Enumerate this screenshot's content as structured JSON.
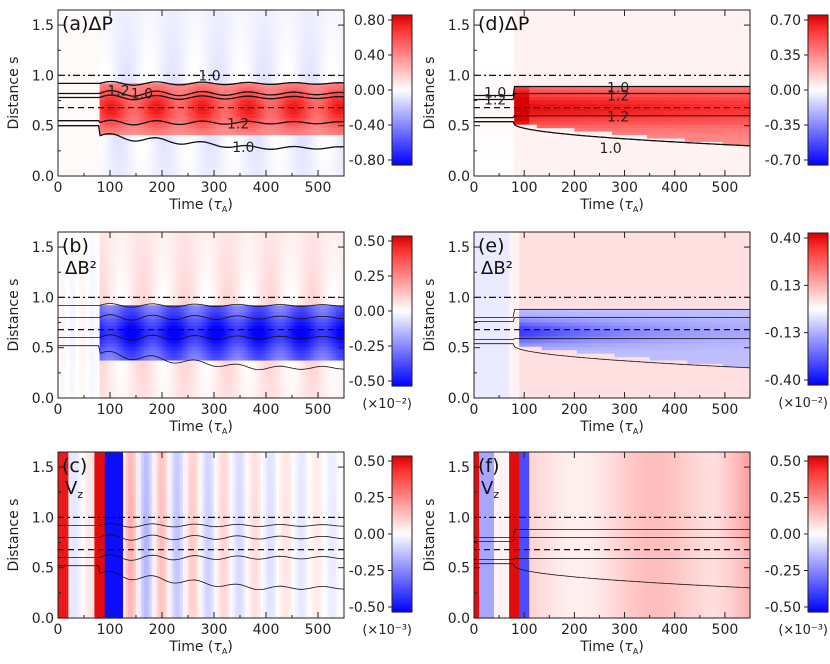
{
  "figure": {
    "xlabel": "Time",
    "xunit": "τ",
    "xunit_sub": "A",
    "ylabel": "Distance s"
  },
  "chart_data": [
    {
      "id": "a",
      "type": "heatmap",
      "panel_label": "(a)",
      "quantity": "ΔP",
      "xlim": [
        0,
        550
      ],
      "ylim": [
        0,
        1.65
      ],
      "xticks": [
        0,
        100,
        200,
        300,
        400,
        500
      ],
      "yticks": [
        0.0,
        0.5,
        1.0,
        1.5
      ],
      "colorbar": {
        "ticks": [
          "0.80",
          "0.40",
          "0.00",
          "-0.40",
          "-0.80"
        ],
        "range": [
          -0.8,
          0.8
        ]
      },
      "contour_labels": [
        "1.0",
        "1.2",
        "1.0",
        "1.2",
        "1.0"
      ],
      "reference_lines": {
        "dashdot": 1.0,
        "dashed": 0.68
      }
    },
    {
      "id": "d",
      "type": "heatmap",
      "panel_label": "(d)",
      "quantity": "ΔP",
      "xlim": [
        0,
        550
      ],
      "ylim": [
        0,
        1.65
      ],
      "xticks": [
        0,
        100,
        200,
        300,
        400,
        500
      ],
      "yticks": [
        0.0,
        0.5,
        1.0,
        1.5
      ],
      "colorbar": {
        "ticks": [
          "0.70",
          "0.35",
          "0.00",
          "-0.35",
          "-0.70"
        ],
        "range": [
          -0.7,
          0.7
        ]
      },
      "contour_labels": [
        "1.0",
        "1.2",
        "1.0",
        "1.2",
        "1.2",
        "1.0"
      ],
      "reference_lines": {
        "dashdot": 1.0,
        "dashed": 0.68
      }
    },
    {
      "id": "b",
      "type": "heatmap",
      "panel_label": "(b)",
      "quantity": "ΔB²",
      "xlim": [
        0,
        550
      ],
      "ylim": [
        0,
        1.65
      ],
      "xticks": [
        0,
        100,
        200,
        300,
        400,
        500
      ],
      "yticks": [
        0.0,
        0.5,
        1.0,
        1.5
      ],
      "colorbar": {
        "ticks": [
          "0.50",
          "0.25",
          "0.00",
          "-0.25",
          "-0.50"
        ],
        "range": [
          -0.5,
          0.5
        ],
        "scale": "(×10⁻²)"
      },
      "reference_lines": {
        "dashdot": 1.0,
        "dashed": 0.68
      }
    },
    {
      "id": "e",
      "type": "heatmap",
      "panel_label": "(e)",
      "quantity": "ΔB²",
      "xlim": [
        0,
        550
      ],
      "ylim": [
        0,
        1.65
      ],
      "xticks": [
        0,
        100,
        200,
        300,
        400,
        500
      ],
      "yticks": [
        0.0,
        0.5,
        1.0,
        1.5
      ],
      "colorbar": {
        "ticks": [
          "0.40",
          "0.13",
          "-0.13",
          "-0.40"
        ],
        "range": [
          -0.4,
          0.4
        ],
        "scale": "(×10⁻²)"
      },
      "reference_lines": {
        "dashdot": 1.0,
        "dashed": 0.68
      }
    },
    {
      "id": "c",
      "type": "heatmap",
      "panel_label": "(c)",
      "quantity": "V",
      "quantity_sub": "z",
      "xlim": [
        0,
        550
      ],
      "ylim": [
        0,
        1.65
      ],
      "xticks": [
        0,
        100,
        200,
        300,
        400,
        500
      ],
      "yticks": [
        0.0,
        0.5,
        1.0,
        1.5
      ],
      "colorbar": {
        "ticks": [
          "0.50",
          "0.25",
          "0.00",
          "-0.25",
          "-0.50"
        ],
        "range": [
          -0.5,
          0.5
        ],
        "scale": "(×10⁻³)"
      },
      "reference_lines": {
        "dashdot": 1.0,
        "dashed": 0.68
      }
    },
    {
      "id": "f",
      "type": "heatmap",
      "panel_label": "(f)",
      "quantity": "V",
      "quantity_sub": "z",
      "xlim": [
        0,
        550
      ],
      "ylim": [
        0,
        1.65
      ],
      "xticks": [
        0,
        100,
        200,
        300,
        400,
        500
      ],
      "yticks": [
        0.0,
        0.5,
        1.0,
        1.5
      ],
      "colorbar": {
        "ticks": [
          "0.50",
          "0.25",
          "0.00",
          "-0.25",
          "-0.50"
        ],
        "range": [
          -0.5,
          0.5
        ],
        "scale": "(×10⁻³)"
      },
      "reference_lines": {
        "dashdot": 1.0,
        "dashed": 0.68
      }
    }
  ]
}
